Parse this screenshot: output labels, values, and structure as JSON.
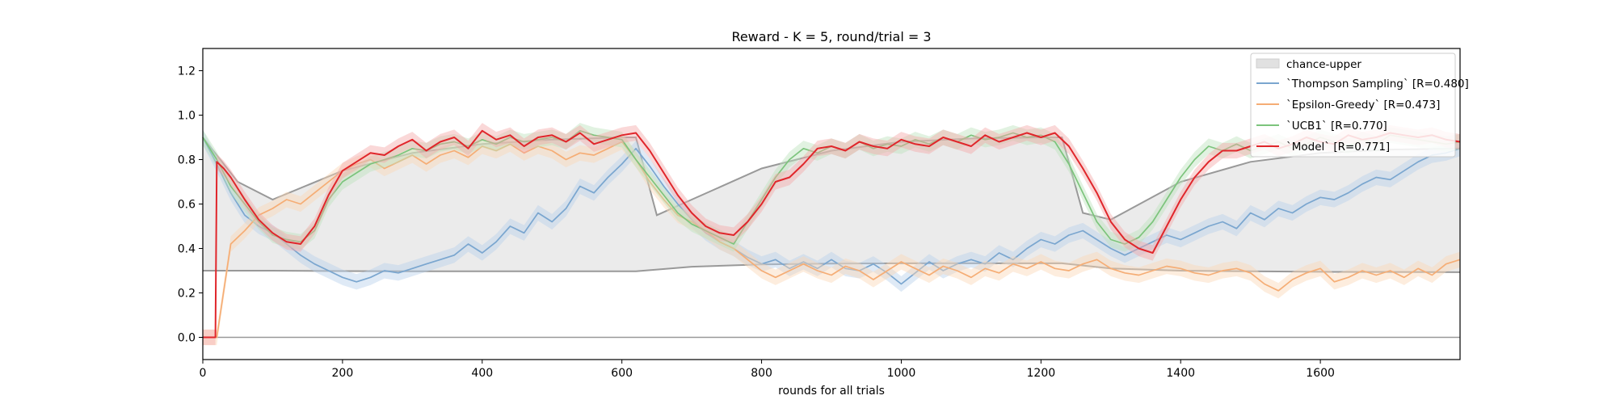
{
  "chart_data": {
    "type": "line",
    "title": "Reward - K = 5, round/trial = 3",
    "xlabel": "rounds for all trials",
    "ylabel": "",
    "xlim": [
      0,
      1800
    ],
    "ylim": [
      -0.1,
      1.3
    ],
    "xticks": [
      0,
      200,
      400,
      600,
      800,
      1000,
      1200,
      1400,
      1600
    ],
    "yticks": [
      0.0,
      0.2,
      0.4,
      0.6,
      0.8,
      1.0,
      1.2
    ],
    "legend_position": "top-right",
    "grid": false,
    "reference_lines": {
      "zero_line": 0.0,
      "chance_lower": {
        "x": [
          0,
          100,
          200,
          300,
          400,
          500,
          600,
          620,
          700,
          800,
          900,
          1000,
          1100,
          1200,
          1230,
          1300,
          1400,
          1500,
          1600,
          1700,
          1800
        ],
        "y": [
          0.3,
          0.3,
          0.298,
          0.297,
          0.297,
          0.297,
          0.297,
          0.297,
          0.318,
          0.328,
          0.332,
          0.333,
          0.333,
          0.333,
          0.333,
          0.31,
          0.3,
          0.297,
          0.295,
          0.294,
          0.293
        ]
      },
      "chance_upper": {
        "x": [
          0,
          50,
          100,
          200,
          300,
          400,
          500,
          600,
          620,
          650,
          700,
          800,
          900,
          1000,
          1100,
          1200,
          1230,
          1260,
          1300,
          1400,
          1500,
          1600,
          1700,
          1800
        ],
        "y": [
          0.9,
          0.7,
          0.62,
          0.75,
          0.83,
          0.87,
          0.89,
          0.9,
          0.9,
          0.55,
          0.62,
          0.76,
          0.84,
          0.88,
          0.895,
          0.9,
          0.9,
          0.56,
          0.53,
          0.7,
          0.79,
          0.83,
          0.845,
          0.85
        ]
      },
      "fill_label": "chance-upper"
    },
    "series": [
      {
        "name": "`Thompson Sampling` [R=0.480]",
        "color": "#7aa6cf",
        "band_color": "#b7d1ea",
        "x": [
          0,
          20,
          40,
          60,
          80,
          100,
          120,
          140,
          160,
          180,
          200,
          220,
          240,
          260,
          280,
          300,
          320,
          340,
          360,
          380,
          400,
          420,
          440,
          460,
          480,
          500,
          520,
          540,
          560,
          580,
          600,
          620,
          640,
          660,
          680,
          700,
          720,
          740,
          760,
          780,
          800,
          820,
          840,
          860,
          880,
          900,
          920,
          940,
          960,
          980,
          1000,
          1020,
          1040,
          1060,
          1080,
          1100,
          1120,
          1140,
          1160,
          1180,
          1200,
          1220,
          1240,
          1260,
          1280,
          1300,
          1320,
          1340,
          1360,
          1380,
          1400,
          1420,
          1440,
          1460,
          1480,
          1500,
          1520,
          1540,
          1560,
          1580,
          1600,
          1620,
          1640,
          1660,
          1680,
          1700,
          1720,
          1740,
          1760,
          1780,
          1800
        ],
        "y": [
          0.9,
          0.78,
          0.65,
          0.55,
          0.5,
          0.47,
          0.42,
          0.37,
          0.33,
          0.3,
          0.27,
          0.25,
          0.27,
          0.3,
          0.29,
          0.31,
          0.33,
          0.35,
          0.37,
          0.42,
          0.38,
          0.43,
          0.5,
          0.47,
          0.56,
          0.52,
          0.58,
          0.68,
          0.65,
          0.72,
          0.78,
          0.85,
          0.77,
          0.68,
          0.6,
          0.53,
          0.47,
          0.43,
          0.4,
          0.36,
          0.33,
          0.35,
          0.31,
          0.34,
          0.31,
          0.35,
          0.31,
          0.3,
          0.33,
          0.29,
          0.24,
          0.29,
          0.34,
          0.3,
          0.33,
          0.35,
          0.33,
          0.38,
          0.35,
          0.4,
          0.44,
          0.42,
          0.46,
          0.48,
          0.44,
          0.4,
          0.37,
          0.4,
          0.43,
          0.46,
          0.44,
          0.47,
          0.5,
          0.52,
          0.49,
          0.56,
          0.53,
          0.58,
          0.56,
          0.6,
          0.63,
          0.62,
          0.65,
          0.69,
          0.72,
          0.71,
          0.75,
          0.79,
          0.82,
          0.83,
          0.85
        ]
      },
      {
        "name": "`Epsilon-Greedy` [R=0.473]",
        "color": "#f5ad75",
        "band_color": "#fbd6b6",
        "x": [
          0,
          20,
          40,
          60,
          80,
          100,
          120,
          140,
          160,
          180,
          200,
          220,
          240,
          260,
          280,
          300,
          320,
          340,
          360,
          380,
          400,
          420,
          440,
          460,
          480,
          500,
          520,
          540,
          560,
          580,
          600,
          620,
          640,
          660,
          680,
          700,
          720,
          740,
          760,
          780,
          800,
          820,
          840,
          860,
          880,
          900,
          920,
          940,
          960,
          980,
          1000,
          1020,
          1040,
          1060,
          1080,
          1100,
          1120,
          1140,
          1160,
          1180,
          1200,
          1220,
          1240,
          1260,
          1280,
          1300,
          1320,
          1340,
          1360,
          1380,
          1400,
          1420,
          1440,
          1460,
          1480,
          1500,
          1520,
          1540,
          1560,
          1580,
          1600,
          1620,
          1640,
          1660,
          1680,
          1700,
          1720,
          1740,
          1760,
          1780,
          1800
        ],
        "y": [
          0.0,
          0.0,
          0.42,
          0.48,
          0.55,
          0.58,
          0.62,
          0.6,
          0.65,
          0.7,
          0.75,
          0.78,
          0.8,
          0.76,
          0.79,
          0.82,
          0.78,
          0.82,
          0.84,
          0.81,
          0.86,
          0.84,
          0.87,
          0.83,
          0.86,
          0.84,
          0.8,
          0.83,
          0.82,
          0.85,
          0.88,
          0.8,
          0.7,
          0.62,
          0.55,
          0.52,
          0.48,
          0.43,
          0.4,
          0.35,
          0.3,
          0.27,
          0.3,
          0.33,
          0.3,
          0.28,
          0.32,
          0.3,
          0.26,
          0.3,
          0.34,
          0.31,
          0.28,
          0.32,
          0.3,
          0.27,
          0.31,
          0.29,
          0.33,
          0.31,
          0.34,
          0.31,
          0.3,
          0.33,
          0.35,
          0.31,
          0.29,
          0.28,
          0.3,
          0.32,
          0.31,
          0.29,
          0.28,
          0.3,
          0.31,
          0.29,
          0.24,
          0.21,
          0.26,
          0.29,
          0.31,
          0.25,
          0.27,
          0.3,
          0.28,
          0.3,
          0.27,
          0.31,
          0.28,
          0.33,
          0.35
        ]
      },
      {
        "name": "`UCB1` [R=0.770]",
        "color": "#7cc47c",
        "band_color": "#bde3bd",
        "x": [
          0,
          20,
          40,
          60,
          80,
          100,
          120,
          140,
          160,
          180,
          200,
          220,
          240,
          260,
          280,
          300,
          320,
          340,
          360,
          380,
          400,
          420,
          440,
          460,
          480,
          500,
          520,
          540,
          560,
          580,
          600,
          620,
          640,
          660,
          680,
          700,
          720,
          740,
          760,
          780,
          800,
          820,
          840,
          860,
          880,
          900,
          920,
          940,
          960,
          980,
          1000,
          1020,
          1040,
          1060,
          1080,
          1100,
          1120,
          1140,
          1160,
          1180,
          1200,
          1220,
          1240,
          1260,
          1280,
          1300,
          1320,
          1340,
          1360,
          1380,
          1400,
          1420,
          1440,
          1460,
          1480,
          1500,
          1520,
          1540,
          1560,
          1580,
          1600,
          1620,
          1640,
          1660,
          1680,
          1700,
          1720,
          1740,
          1760,
          1780,
          1800
        ],
        "y": [
          0.9,
          0.8,
          0.68,
          0.6,
          0.52,
          0.46,
          0.44,
          0.43,
          0.48,
          0.62,
          0.7,
          0.74,
          0.78,
          0.8,
          0.82,
          0.85,
          0.84,
          0.87,
          0.88,
          0.86,
          0.89,
          0.87,
          0.9,
          0.88,
          0.89,
          0.9,
          0.88,
          0.93,
          0.91,
          0.9,
          0.89,
          0.8,
          0.72,
          0.64,
          0.56,
          0.51,
          0.48,
          0.45,
          0.42,
          0.52,
          0.62,
          0.72,
          0.8,
          0.85,
          0.83,
          0.86,
          0.84,
          0.88,
          0.85,
          0.87,
          0.86,
          0.89,
          0.87,
          0.9,
          0.88,
          0.91,
          0.89,
          0.9,
          0.92,
          0.9,
          0.91,
          0.88,
          0.78,
          0.65,
          0.52,
          0.44,
          0.42,
          0.45,
          0.52,
          0.62,
          0.72,
          0.8,
          0.86,
          0.84,
          0.87,
          0.84,
          0.86,
          0.88,
          0.85,
          0.87,
          0.9,
          0.88,
          0.86,
          0.89,
          0.87,
          0.91,
          0.9,
          0.89,
          0.88,
          0.87,
          0.88
        ]
      },
      {
        "name": "`Model` [R=0.771]",
        "color": "#e0262b",
        "band_color": "#f4a9a9",
        "x": [
          0,
          10,
          18,
          20,
          30,
          40,
          60,
          80,
          100,
          120,
          140,
          160,
          180,
          200,
          220,
          240,
          260,
          280,
          300,
          320,
          340,
          360,
          380,
          400,
          420,
          440,
          460,
          480,
          500,
          520,
          540,
          560,
          580,
          600,
          620,
          640,
          660,
          680,
          700,
          720,
          740,
          760,
          780,
          800,
          820,
          840,
          860,
          880,
          900,
          920,
          940,
          960,
          980,
          1000,
          1020,
          1040,
          1060,
          1080,
          1100,
          1120,
          1140,
          1160,
          1180,
          1200,
          1220,
          1240,
          1260,
          1280,
          1300,
          1320,
          1340,
          1360,
          1380,
          1400,
          1420,
          1440,
          1460,
          1480,
          1500,
          1520,
          1540,
          1560,
          1580,
          1600,
          1620,
          1640,
          1660,
          1680,
          1700,
          1720,
          1740,
          1760,
          1780,
          1800
        ],
        "y": [
          0.0,
          0.0,
          0.0,
          0.79,
          0.76,
          0.72,
          0.62,
          0.53,
          0.47,
          0.43,
          0.42,
          0.5,
          0.64,
          0.75,
          0.79,
          0.83,
          0.82,
          0.86,
          0.89,
          0.84,
          0.88,
          0.9,
          0.85,
          0.93,
          0.89,
          0.91,
          0.86,
          0.9,
          0.91,
          0.88,
          0.92,
          0.87,
          0.89,
          0.91,
          0.92,
          0.84,
          0.74,
          0.64,
          0.56,
          0.5,
          0.47,
          0.46,
          0.52,
          0.6,
          0.7,
          0.72,
          0.78,
          0.85,
          0.86,
          0.84,
          0.88,
          0.86,
          0.85,
          0.89,
          0.87,
          0.86,
          0.9,
          0.88,
          0.86,
          0.91,
          0.88,
          0.9,
          0.92,
          0.9,
          0.92,
          0.86,
          0.76,
          0.65,
          0.52,
          0.44,
          0.4,
          0.38,
          0.5,
          0.62,
          0.72,
          0.79,
          0.84,
          0.84,
          0.86,
          0.88,
          0.85,
          0.87,
          0.9,
          0.88,
          0.87,
          0.91,
          0.89,
          0.9,
          0.92,
          0.91,
          0.9,
          0.91,
          0.89,
          0.88
        ]
      }
    ]
  }
}
